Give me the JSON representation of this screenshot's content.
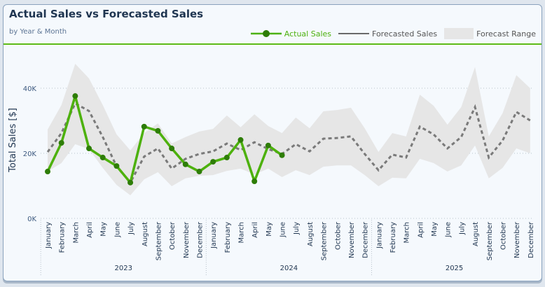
{
  "header": {
    "title": "Actual Sales vs Forecasted Sales",
    "subtitle": "by Year & Month"
  },
  "legend": {
    "actual": "Actual Sales",
    "forecast": "Forecasted Sales",
    "range": "Forecast Range"
  },
  "colors": {
    "actual": "#4db10d",
    "actual_marker": "#2e7d07",
    "forecast": "#7a7a7a",
    "range": "#e6e6e6",
    "divider": "#5dbb17",
    "title": "#1f3550"
  },
  "chart_data": {
    "type": "line",
    "title": "Actual Sales vs Forecasted Sales",
    "subtitle": "by Year & Month",
    "xlabel": "",
    "ylabel": "Total Sales [$]",
    "ylim": [
      0,
      50000
    ],
    "yticks": [
      0,
      20000,
      40000
    ],
    "ytick_labels": [
      "0K",
      "20K",
      "40K"
    ],
    "grid": true,
    "legend_position": "top-right",
    "years": [
      "2023",
      "2024",
      "2025"
    ],
    "months": [
      "January",
      "February",
      "March",
      "April",
      "May",
      "June",
      "July",
      "August",
      "September",
      "October",
      "November",
      "December"
    ],
    "series": [
      {
        "name": "Actual Sales",
        "type": "line-markers",
        "values": [
          14400,
          23200,
          37600,
          21500,
          18700,
          16100,
          11000,
          28200,
          26900,
          21500,
          16600,
          14400,
          17400,
          18700,
          24100,
          11400,
          22400,
          19400
        ]
      },
      {
        "name": "Forecasted Sales",
        "type": "dashed-line",
        "values": [
          20400,
          26200,
          35300,
          33000,
          25000,
          16000,
          11000,
          19000,
          21500,
          15300,
          18300,
          19800,
          20600,
          23000,
          21000,
          23400,
          21300,
          19800,
          22800,
          20600,
          24500,
          24700,
          25200,
          19800,
          14800,
          19600,
          18700,
          28200,
          25800,
          21500,
          25000,
          34200,
          18700,
          23900,
          32700,
          30100
        ]
      },
      {
        "name": "Forecast Range",
        "type": "band",
        "upper": [
          27300,
          34800,
          47500,
          43000,
          34800,
          25800,
          20900,
          26200,
          29200,
          23000,
          25000,
          26700,
          27500,
          31600,
          28000,
          32000,
          28400,
          26200,
          31000,
          27700,
          32900,
          33300,
          34000,
          27700,
          20400,
          26200,
          25200,
          38000,
          34600,
          28800,
          34200,
          46500,
          25200,
          32300,
          44000,
          40000
        ],
        "lower": [
          14400,
          17000,
          22800,
          21300,
          15500,
          10300,
          7100,
          12000,
          14200,
          9900,
          12300,
          13100,
          13300,
          14600,
          15300,
          13500,
          15300,
          12700,
          14800,
          13300,
          15900,
          16300,
          16300,
          13300,
          9900,
          12500,
          12300,
          18300,
          17000,
          14400,
          16300,
          22400,
          12300,
          15500,
          21500,
          20000
        ]
      }
    ]
  }
}
